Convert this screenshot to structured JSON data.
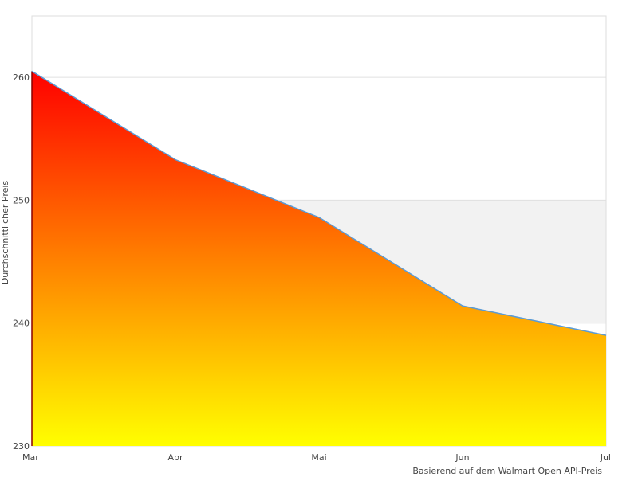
{
  "chart_data": {
    "type": "area",
    "title": "",
    "xlabel": "",
    "ylabel": "Durchschnittlicher Preis",
    "caption": "Basierend auf dem Walmart Open API-Preis",
    "categories": [
      "Mar",
      "Apr",
      "Mai",
      "Jun",
      "Jul"
    ],
    "series": [
      {
        "values": [
          260.5,
          253.3,
          248.6,
          241.4,
          239.0
        ]
      }
    ],
    "ylim": [
      230,
      265
    ],
    "yticks": [
      230,
      240,
      250,
      260
    ],
    "grid": true,
    "banded_grid": true,
    "legend": "none",
    "colors": {
      "line": "#5b9bd5",
      "fill_top": "#ff0000",
      "fill_bottom": "#ffff00",
      "band": "#f2f2f2",
      "grid": "#e0e0e0"
    }
  }
}
